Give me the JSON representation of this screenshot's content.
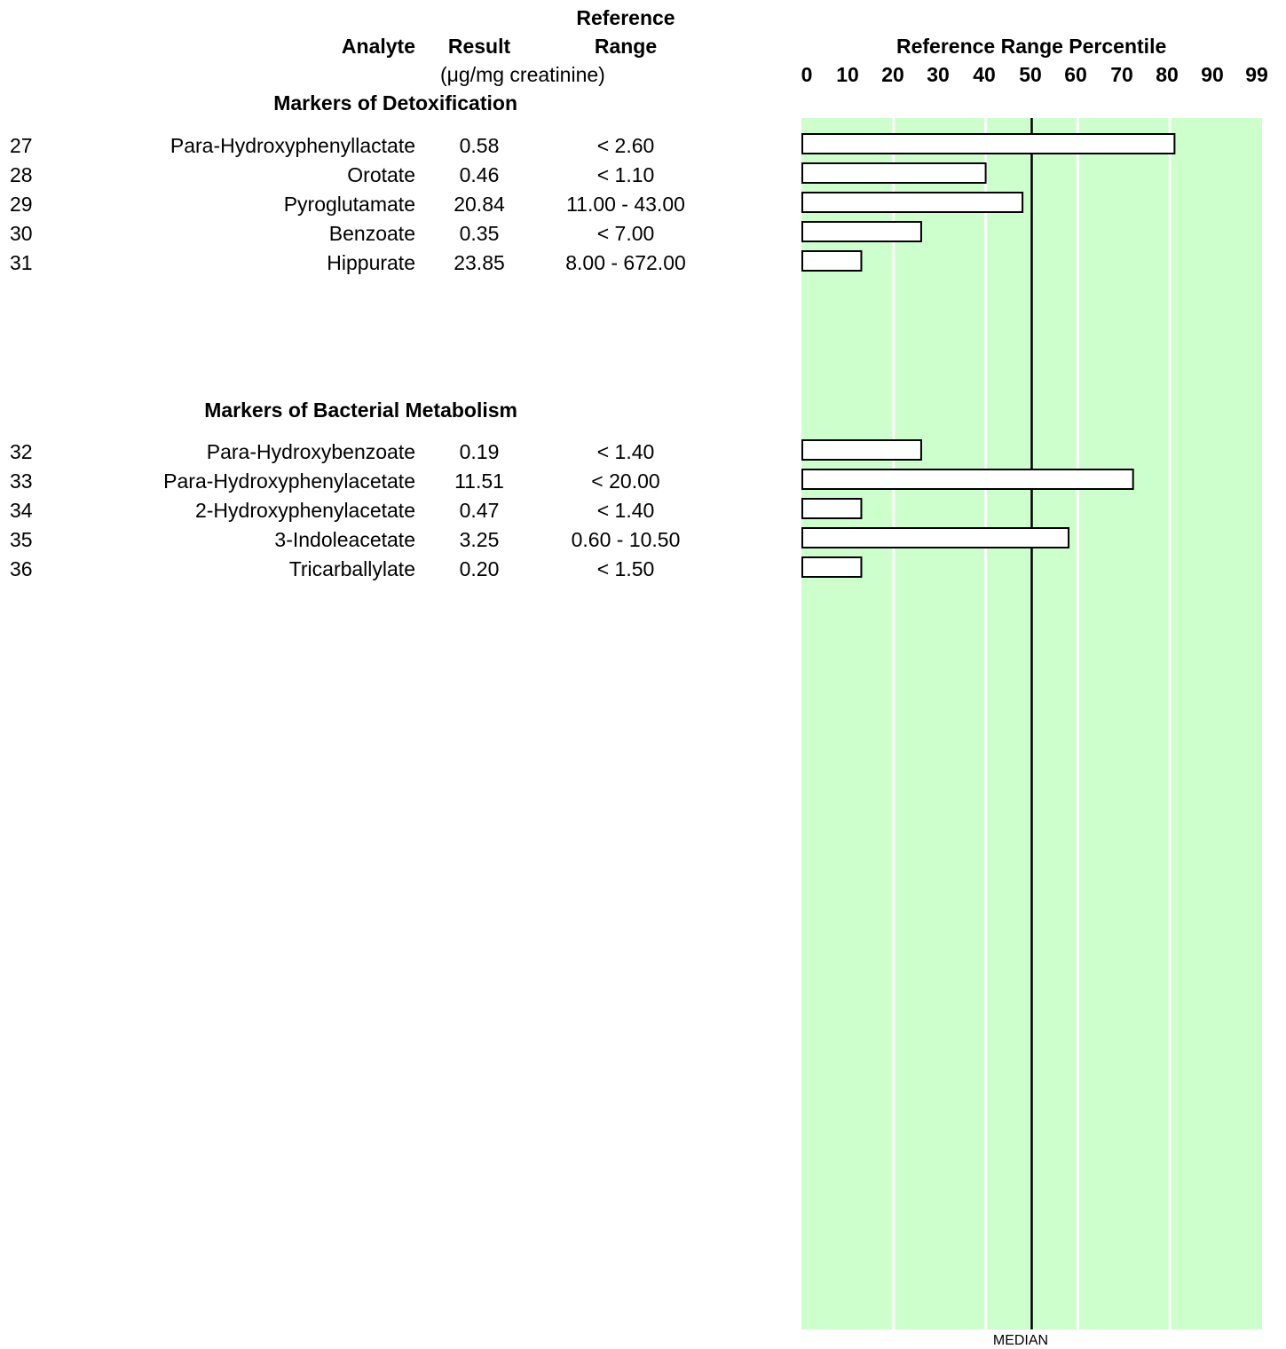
{
  "header": {
    "reference_line1": "Reference",
    "analyte": "Analyte",
    "result": "Result",
    "range": "Range",
    "units": "(μg/mg creatinine)",
    "percentile_title": "Reference Range Percentile"
  },
  "sections": [
    {
      "title": "Markers of Detoxification",
      "rows": [
        {
          "num": "27",
          "analyte": "Para-Hydroxyphenyllactate",
          "result": "0.58",
          "range": "< 2.60"
        },
        {
          "num": "28",
          "analyte": "Orotate",
          "result": "0.46",
          "range": "< 1.10"
        },
        {
          "num": "29",
          "analyte": "Pyroglutamate",
          "result": "20.84",
          "range": "11.00 - 43.00"
        },
        {
          "num": "30",
          "analyte": "Benzoate",
          "result": "0.35",
          "range": "< 7.00"
        },
        {
          "num": "31",
          "analyte": "Hippurate",
          "result": "23.85",
          "range": "8.00 - 672.00"
        }
      ]
    },
    {
      "title": "Markers of Bacterial Metabolism",
      "rows": [
        {
          "num": "32",
          "analyte": "Para-Hydroxybenzoate",
          "result": "0.19",
          "range": "< 1.40"
        },
        {
          "num": "33",
          "analyte": "Para-Hydroxyphenylacetate",
          "result": "11.51",
          "range": "< 20.00"
        },
        {
          "num": "34",
          "analyte": "2-Hydroxyphenylacetate",
          "result": "0.47",
          "range": "< 1.40"
        },
        {
          "num": "35",
          "analyte": "3-Indoleacetate",
          "result": "3.25",
          "range": "0.60 - 10.50"
        },
        {
          "num": "36",
          "analyte": "Tricarballylate",
          "result": "0.20",
          "range": "< 1.50"
        }
      ]
    }
  ],
  "chart_data": {
    "type": "bar",
    "orientation": "horizontal",
    "title": "Reference Range Percentile",
    "x_ticks": [
      "0",
      "10",
      "20",
      "30",
      "40",
      "50",
      "60",
      "70",
      "80",
      "90",
      "99"
    ],
    "xlim": [
      0,
      100
    ],
    "grid": true,
    "median_label": "MEDIAN",
    "median_percentile": 50,
    "categories": [
      "27",
      "28",
      "29",
      "30",
      "31",
      "32",
      "33",
      "34",
      "35",
      "36"
    ],
    "values": [
      81,
      40,
      48,
      26,
      13,
      26,
      72,
      13,
      58,
      13
    ],
    "colors": {
      "band": "#ccffcc",
      "bar_fill": "#ffffff",
      "bar_stroke": "#000000",
      "median": "#000000"
    }
  }
}
